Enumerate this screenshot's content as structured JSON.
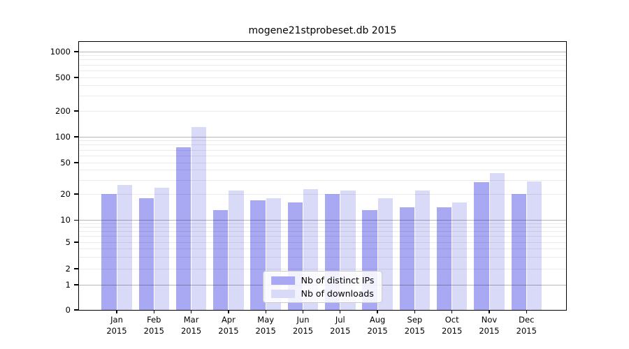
{
  "title": "mogene21stprobeset.db 2015",
  "chart_data": {
    "type": "bar",
    "title": "mogene21stprobeset.db 2015",
    "categories": [
      "Jan",
      "Feb",
      "Mar",
      "Apr",
      "May",
      "Jun",
      "Jul",
      "Aug",
      "Sep",
      "Oct",
      "Nov",
      "Dec"
    ],
    "category_sublabel": "2015",
    "series": [
      {
        "name": "Nb of distinct IPs",
        "color": "#a9a9f3",
        "values": [
          20,
          18,
          75,
          13,
          17,
          16,
          20,
          13,
          14,
          14,
          28,
          20
        ]
      },
      {
        "name": "Nb of downloads",
        "color": "#d9d9f8",
        "values": [
          26,
          24,
          130,
          22,
          18,
          23,
          22,
          18,
          22,
          16,
          37,
          29
        ]
      }
    ],
    "yaxis": {
      "scale": "symlog",
      "tick_labels": [
        "1000",
        "500",
        "200",
        "100",
        "50",
        "20",
        "10",
        "5",
        "2",
        "1",
        "0"
      ],
      "tick_values": [
        1000,
        500,
        200,
        100,
        50,
        20,
        10,
        5,
        2,
        1,
        0
      ],
      "major_gridlines": [
        1,
        10,
        100,
        1000
      ],
      "minor_gridlines": [
        2,
        3,
        4,
        5,
        6,
        7,
        8,
        9,
        20,
        30,
        40,
        50,
        60,
        70,
        80,
        90,
        200,
        300,
        400,
        500,
        600,
        700,
        800,
        900
      ],
      "range": [
        0,
        1300
      ]
    },
    "legend": {
      "position": "lower center",
      "entries": [
        "Nb of distinct IPs",
        "Nb of downloads"
      ]
    },
    "grid": true
  }
}
